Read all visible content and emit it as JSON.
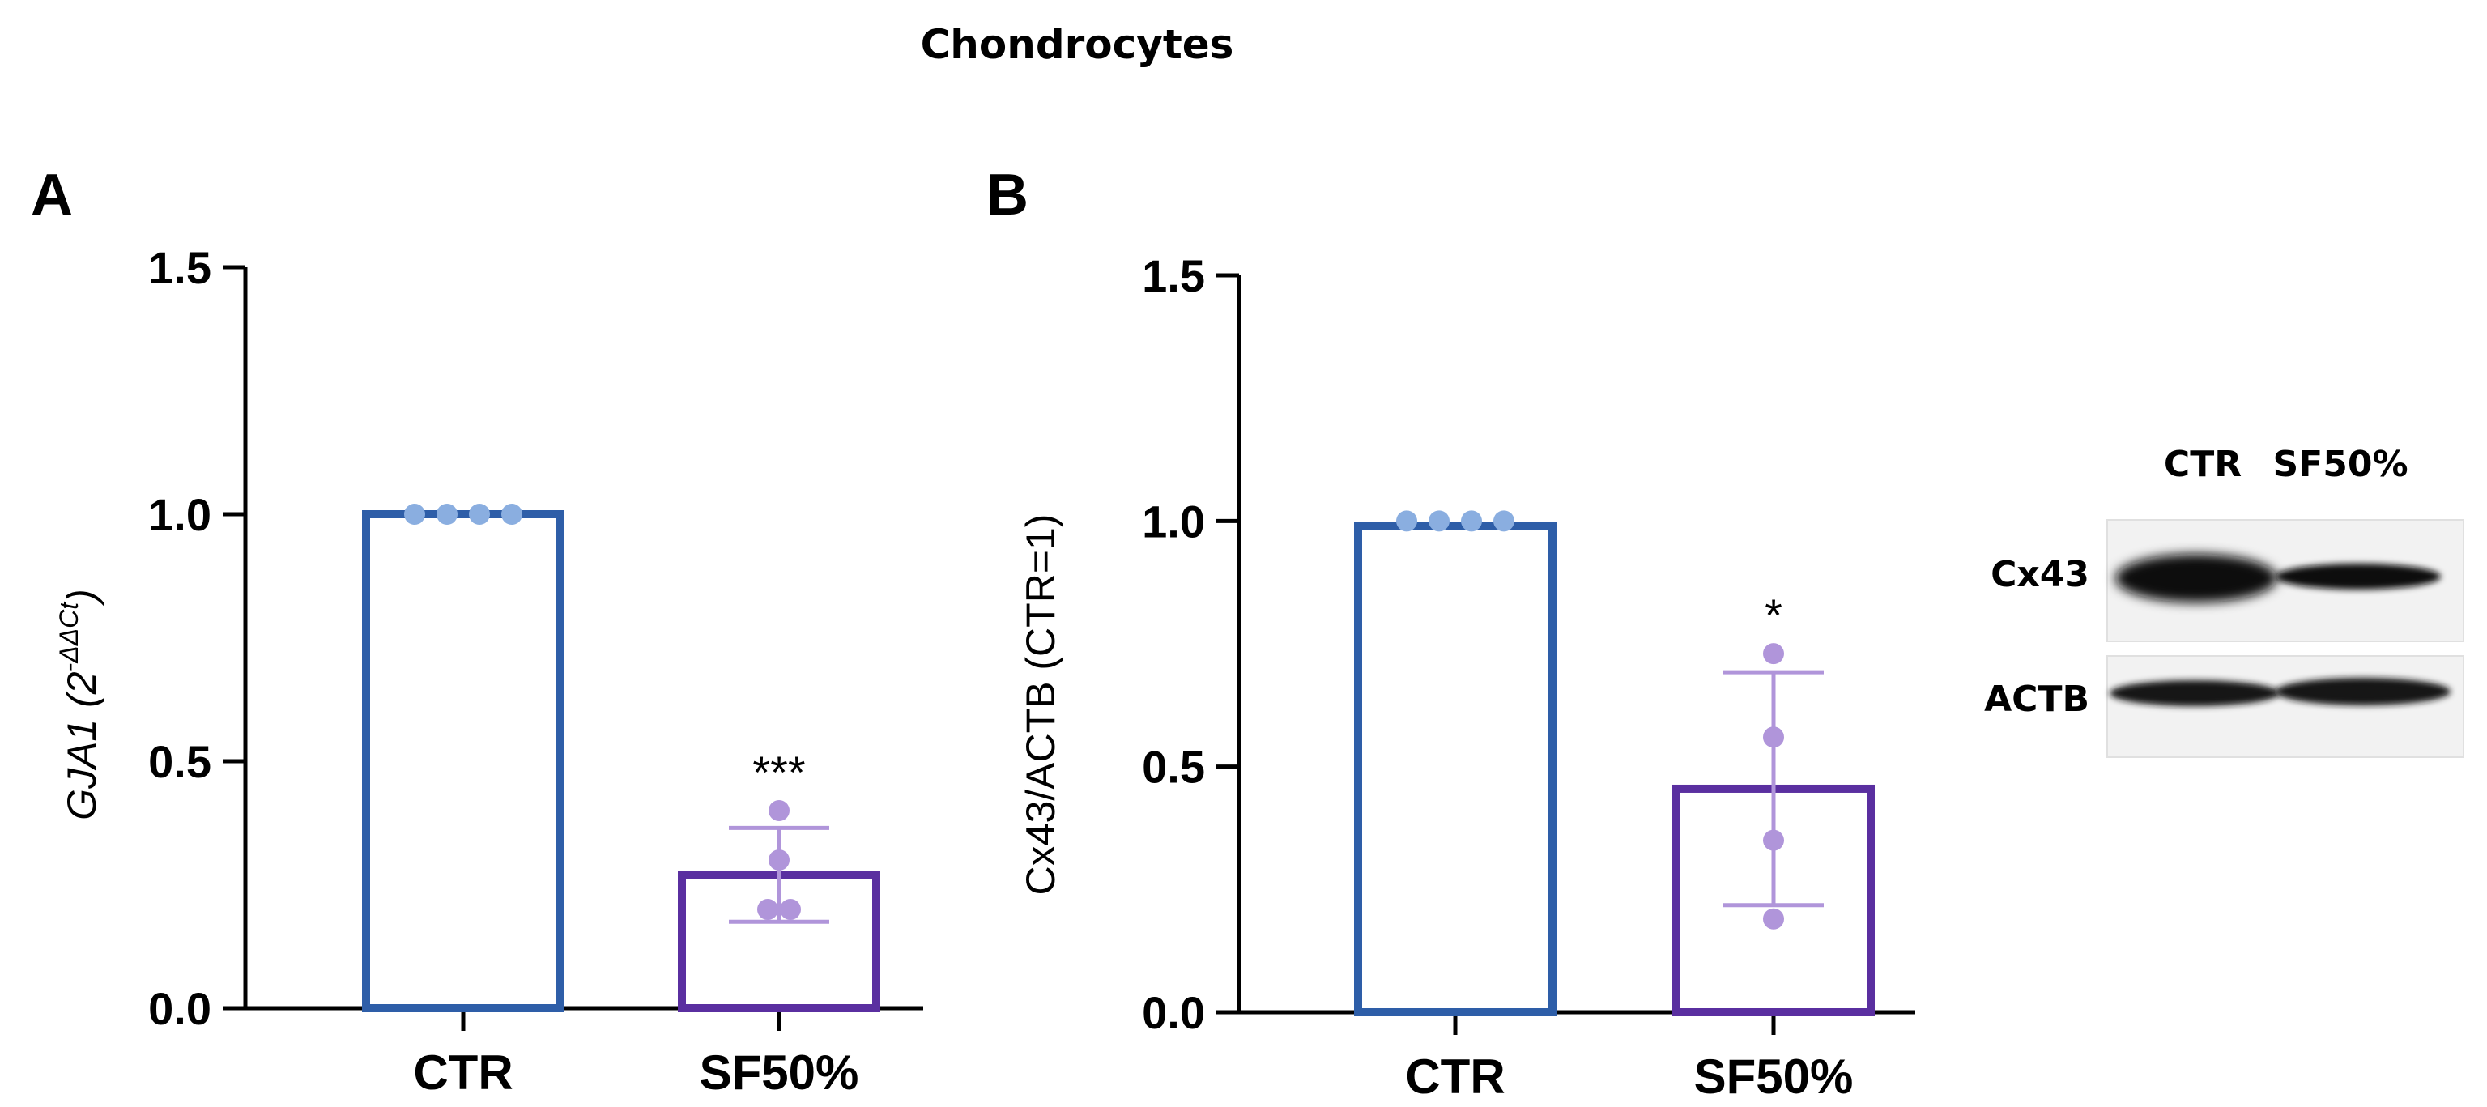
{
  "figure": {
    "title": "Chondrocytes"
  },
  "colors": {
    "ctr_bar": "#2e5ea8",
    "sf_bar": "#5a2fa0",
    "ctr_point": "#8aaee0",
    "sf_point": "#b095da",
    "axis": "#000000"
  },
  "chart_data": [
    {
      "panel": "A",
      "type": "bar",
      "ylabel_italic": "GJA1",
      "ylabel_rest": " (2",
      "ylabel_sup": "-ΔΔCt",
      "ylabel_close": ")",
      "categories": [
        "CTR",
        "SF50%"
      ],
      "values": [
        1.0,
        0.27
      ],
      "error_sd": [
        0,
        0.095
      ],
      "points": [
        [
          1.0,
          1.0,
          1.0,
          1.0
        ],
        [
          0.4,
          0.3,
          0.2,
          0.2
        ]
      ],
      "significance": [
        "",
        "***"
      ],
      "ylim": [
        0,
        1.5
      ],
      "yticks": [
        0.0,
        0.5,
        1.0,
        1.5
      ],
      "ytick_labels": [
        "0.0",
        "0.5",
        "1.0",
        "1.5"
      ]
    },
    {
      "panel": "B",
      "type": "bar",
      "ylabel": "Cx43/ACTB (CTR=1)",
      "categories": [
        "CTR",
        "SF50%"
      ],
      "values": [
        0.99,
        0.455
      ],
      "error_sd": [
        0,
        0.237
      ],
      "points": [
        [
          1.0,
          1.0,
          1.0,
          1.0
        ],
        [
          0.73,
          0.56,
          0.35,
          0.19
        ]
      ],
      "significance": [
        "",
        "*"
      ],
      "ylim": [
        0,
        1.5
      ],
      "yticks": [
        0.0,
        0.5,
        1.0,
        1.5
      ],
      "ytick_labels": [
        "0.0",
        "0.5",
        "1.0",
        "1.5"
      ]
    }
  ],
  "blot": {
    "columns": [
      "CTR",
      "SF50%"
    ],
    "rows": [
      "Cx43",
      "ACTB"
    ]
  }
}
